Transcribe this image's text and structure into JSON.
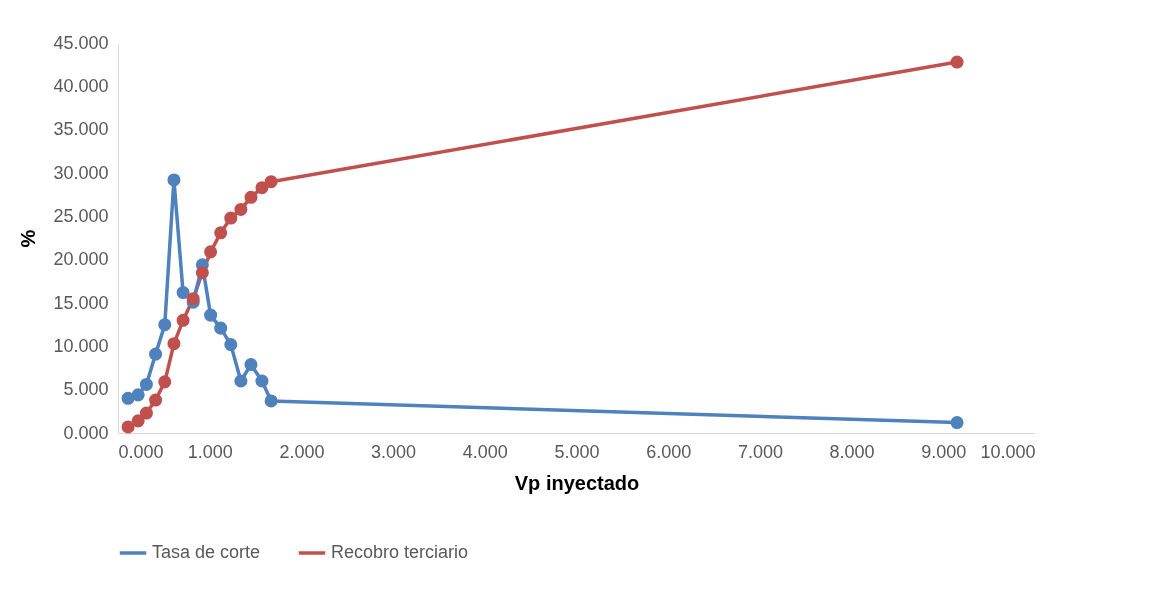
{
  "chart_data": {
    "type": "line",
    "xlabel": "Vp inyectado",
    "ylabel": "%",
    "marker": "circle",
    "grid": false,
    "legend": "bottom",
    "xlim": [
      0,
      10
    ],
    "ylim": [
      0,
      45
    ],
    "xticks": [
      {
        "value": 0,
        "label": "0.000"
      },
      {
        "value": 1,
        "label": "1.000"
      },
      {
        "value": 2,
        "label": "2.000"
      },
      {
        "value": 3,
        "label": "3.000"
      },
      {
        "value": 4,
        "label": "4.000"
      },
      {
        "value": 5,
        "label": "5.000"
      },
      {
        "value": 6,
        "label": "6.000"
      },
      {
        "value": 7,
        "label": "7.000"
      },
      {
        "value": 8,
        "label": "8.000"
      },
      {
        "value": 9,
        "label": "9.000"
      },
      {
        "value": 10,
        "label": "10.000"
      }
    ],
    "yticks": [
      {
        "value": 0,
        "label": "0.000"
      },
      {
        "value": 5,
        "label": "5.000"
      },
      {
        "value": 10,
        "label": "10.000"
      },
      {
        "value": 15,
        "label": "15.000"
      },
      {
        "value": 20,
        "label": "20.000"
      },
      {
        "value": 25,
        "label": "25.000"
      },
      {
        "value": 30,
        "label": "30.000"
      },
      {
        "value": 35,
        "label": "35.000"
      },
      {
        "value": 40,
        "label": "40.000"
      },
      {
        "value": 45,
        "label": "45.000"
      }
    ],
    "x": [
      0.11,
      0.22,
      0.31,
      0.41,
      0.51,
      0.61,
      0.71,
      0.82,
      0.92,
      1.01,
      1.12,
      1.23,
      1.34,
      1.45,
      1.57,
      1.67,
      9.15
    ],
    "series": [
      {
        "name": "Tasa de corte",
        "color": "#4f81bd",
        "values": [
          4.0,
          4.4,
          5.6,
          9.1,
          12.5,
          29.2,
          16.2,
          15.1,
          19.4,
          13.6,
          12.1,
          10.2,
          6.0,
          7.9,
          6.0,
          3.7,
          1.2
        ]
      },
      {
        "name": "Recobro terciario",
        "color": "#c0504d",
        "values": [
          0.7,
          1.4,
          2.3,
          3.8,
          5.9,
          10.3,
          13.0,
          15.5,
          18.5,
          20.9,
          23.1,
          24.8,
          25.8,
          27.2,
          28.3,
          29.0,
          42.8
        ]
      }
    ]
  }
}
